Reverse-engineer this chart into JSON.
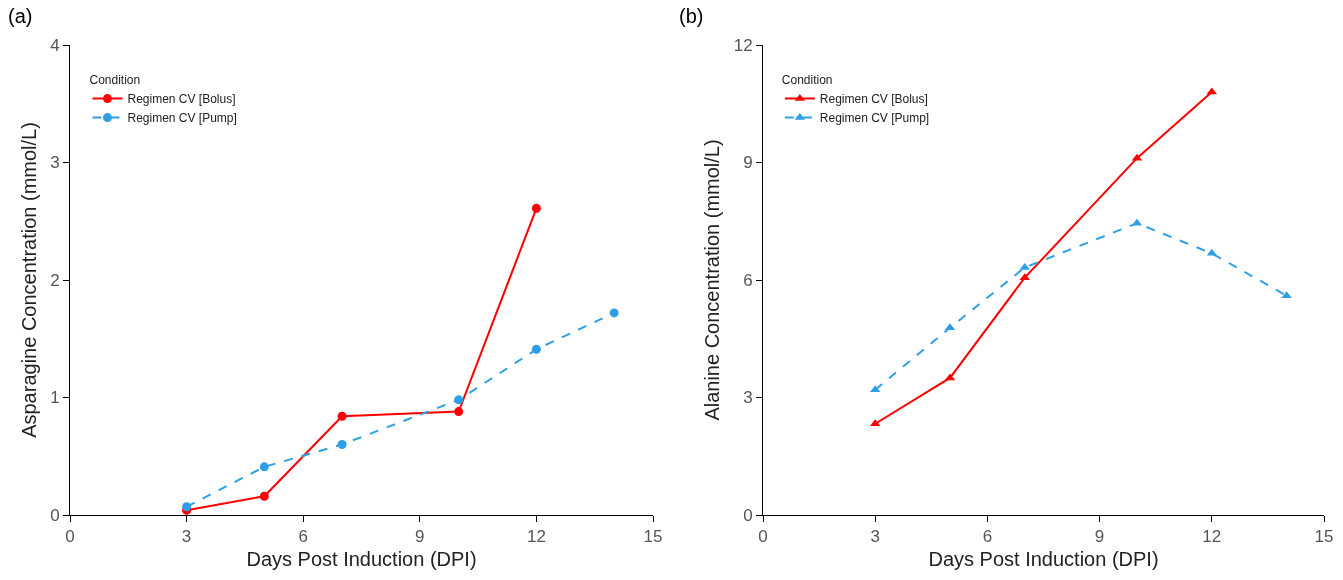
{
  "chart_data": [
    {
      "type": "line",
      "title": "(a)",
      "xlabel": "Days Post Induction (DPI)",
      "ylabel": "Asparagine Concentration (mmol/L)",
      "legend_title": "Condition",
      "legend": "top left",
      "marker": "circle",
      "grid": false,
      "x": [
        3,
        5,
        7,
        10,
        12,
        14
      ],
      "xlim": [
        0,
        15
      ],
      "xticks": [
        0,
        3,
        6,
        9,
        12,
        15
      ],
      "ylim": [
        0,
        4
      ],
      "yticks": [
        0,
        1,
        2,
        3,
        4
      ],
      "series": [
        {
          "name": "Regimen CV [Bolus]",
          "color": "#ff0000",
          "line_style": "solid",
          "values": [
            0.04,
            0.16,
            0.84,
            0.88,
            2.61,
            null
          ]
        },
        {
          "name": "Regimen CV [Pump]",
          "color": "#2e9fe6",
          "line_style": "dashed",
          "values": [
            0.07,
            0.41,
            0.6,
            0.98,
            1.41,
            1.72
          ]
        }
      ]
    },
    {
      "type": "line",
      "title": "(b)",
      "xlabel": "Days Post Induction (DPI)",
      "ylabel": "Alanine Concentration (mmol/L)",
      "legend_title": "Condition",
      "legend": "top left",
      "marker": "triangle",
      "grid": false,
      "x": [
        3,
        5,
        7,
        10,
        12,
        14
      ],
      "xlim": [
        0,
        15
      ],
      "xticks": [
        0,
        3,
        6,
        9,
        12,
        15
      ],
      "ylim": [
        0,
        12
      ],
      "yticks": [
        0,
        3,
        6,
        9,
        12
      ],
      "series": [
        {
          "name": "Regimen CV [Bolus]",
          "color": "#ff0000",
          "line_style": "solid",
          "values": [
            2.33,
            3.5,
            6.06,
            9.11,
            10.8,
            null
          ]
        },
        {
          "name": "Regimen CV [Pump]",
          "color": "#2e9fe6",
          "line_style": "dashed",
          "values": [
            3.2,
            4.78,
            6.32,
            7.45,
            6.68,
            5.6
          ]
        }
      ]
    }
  ]
}
